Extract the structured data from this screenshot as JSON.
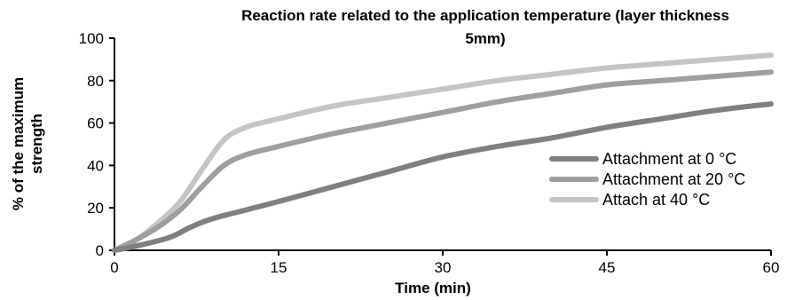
{
  "chart_data": {
    "type": "line",
    "title_line1": "Reaction rate related to the application temperature (layer thickness",
    "title_line2": "5mm)",
    "xlabel": "Time (min)",
    "ylabel_line1": "% of the maximum",
    "ylabel_line2": "strength",
    "xlim": [
      0,
      60
    ],
    "ylim": [
      0,
      100
    ],
    "x_ticks": [
      "0",
      "15",
      "30",
      "45",
      "60"
    ],
    "y_ticks": [
      "0",
      "20",
      "40",
      "60",
      "80",
      "100"
    ],
    "grid": false,
    "legend_position": "right",
    "series": [
      {
        "name": "Attachment at 0 °C",
        "color": "#7f7f7f",
        "points": [
          [
            0,
            0
          ],
          [
            2,
            2
          ],
          [
            5,
            6
          ],
          [
            7,
            11
          ],
          [
            9,
            15
          ],
          [
            12,
            19
          ],
          [
            15,
            23
          ],
          [
            20,
            30
          ],
          [
            25,
            37
          ],
          [
            30,
            44
          ],
          [
            35,
            49
          ],
          [
            40,
            53
          ],
          [
            45,
            58
          ],
          [
            50,
            62
          ],
          [
            55,
            66
          ],
          [
            60,
            69
          ]
        ]
      },
      {
        "name": "Attachment at 20 °C",
        "color": "#9e9e9e",
        "points": [
          [
            0,
            0
          ],
          [
            2,
            5
          ],
          [
            4,
            11
          ],
          [
            6,
            19
          ],
          [
            8,
            30
          ],
          [
            10,
            40
          ],
          [
            12,
            45
          ],
          [
            15,
            49
          ],
          [
            20,
            55
          ],
          [
            25,
            60
          ],
          [
            30,
            65
          ],
          [
            35,
            70
          ],
          [
            40,
            74
          ],
          [
            45,
            78
          ],
          [
            50,
            80
          ],
          [
            55,
            82
          ],
          [
            60,
            84
          ]
        ]
      },
      {
        "name": "Attach at 40 °C",
        "color": "#c4c4c4",
        "points": [
          [
            0,
            0
          ],
          [
            2,
            5
          ],
          [
            4,
            13
          ],
          [
            6,
            23
          ],
          [
            8,
            38
          ],
          [
            10,
            52
          ],
          [
            12,
            58
          ],
          [
            15,
            62
          ],
          [
            20,
            68
          ],
          [
            25,
            72
          ],
          [
            30,
            76
          ],
          [
            35,
            80
          ],
          [
            40,
            83
          ],
          [
            45,
            86
          ],
          [
            50,
            88
          ],
          [
            55,
            90
          ],
          [
            60,
            92
          ]
        ]
      }
    ]
  }
}
